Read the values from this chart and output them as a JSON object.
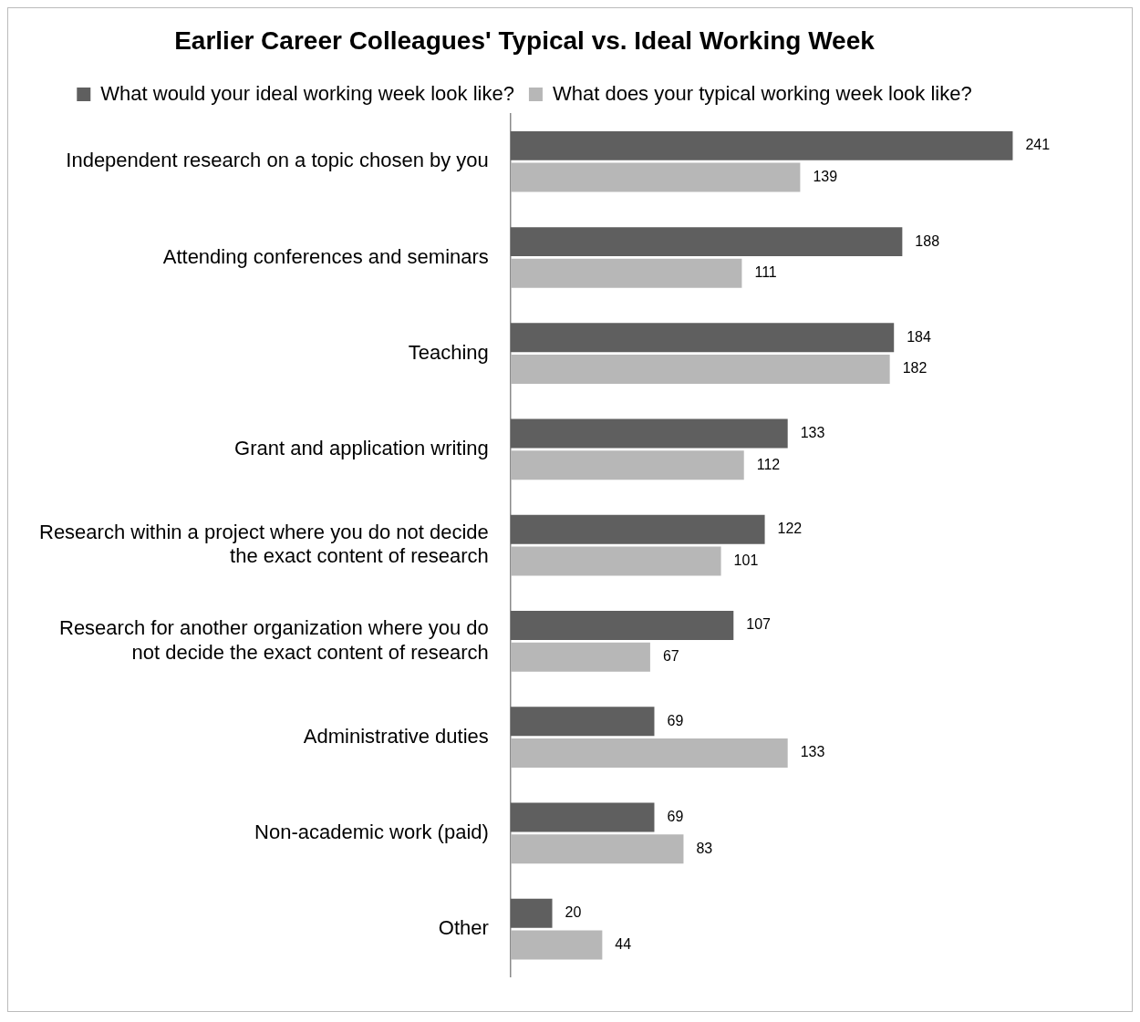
{
  "chart_data": {
    "type": "bar",
    "orientation": "horizontal",
    "title": "Earlier Career Colleagues' Typical vs. Ideal Working Week",
    "categories": [
      "Independent research on a topic chosen by you",
      "Attending conferences and seminars",
      "Teaching",
      "Grant and application writing",
      "Research within a project where you do not decide the exact content of research",
      "Research for another organization where you do not decide the exact content of research",
      "Administrative duties",
      "Non-academic work (paid)",
      "Other"
    ],
    "series": [
      {
        "name": "What would your ideal working week look like?",
        "color": "#5f5f5f",
        "values": [
          241,
          188,
          184,
          133,
          122,
          107,
          69,
          69,
          20
        ]
      },
      {
        "name": "What does your typical working week look like?",
        "color": "#b7b7b7",
        "values": [
          139,
          111,
          182,
          112,
          101,
          67,
          133,
          83,
          44
        ]
      }
    ],
    "data_labels": true,
    "legend": "top",
    "grid": false,
    "tick_labels": "y"
  }
}
